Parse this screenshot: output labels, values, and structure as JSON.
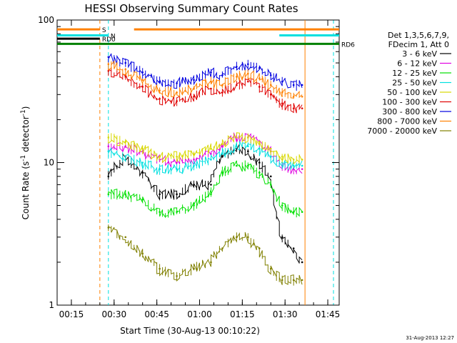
{
  "chart_data": {
    "type": "line",
    "title": "HESSI Observing Summary Count Rates",
    "xlabel": "Start Time (30-Aug-13 00:10:22)",
    "ylabel": "Count Rate (s",
    "ylabel_sup": "-1",
    "ylabel_mid": " detector",
    "ylabel_tail": ")",
    "yscale": "log",
    "ylim": [
      1,
      100
    ],
    "xlim": [
      "00:10",
      "01:49"
    ],
    "xticks": [
      "00:15",
      "00:30",
      "00:45",
      "01:00",
      "01:15",
      "01:30",
      "01:45"
    ],
    "yticks": [
      "1",
      "10",
      "100"
    ],
    "footer_date": "31-Aug-2013 12:27",
    "legend_header": [
      "Det 1,3,5,6,7,9,",
      "FDecim 1, Att 0"
    ],
    "background": "#ffffff",
    "series": [
      {
        "name": "3 - 6 keV",
        "color": "#000000",
        "x": [
          "00:28",
          "00:34",
          "00:40",
          "00:46",
          "00:52",
          "00:58",
          "01:04",
          "01:08",
          "01:13",
          "01:17",
          "01:21",
          "01:25",
          "01:29",
          "01:33",
          "01:36"
        ],
        "y": [
          8,
          11,
          8.5,
          6,
          6,
          7,
          7,
          11,
          12.5,
          12,
          10,
          8,
          3,
          2.5,
          2
        ]
      },
      {
        "name": "6 - 12 keV",
        "color": "#e000e0",
        "x": [
          "00:28",
          "00:34",
          "00:40",
          "00:46",
          "00:52",
          "00:58",
          "01:04",
          "01:08",
          "01:13",
          "01:17",
          "01:21",
          "01:25",
          "01:29",
          "01:33",
          "01:36"
        ],
        "y": [
          13,
          13,
          12,
          10.5,
          10,
          10.5,
          11.5,
          13,
          15,
          15,
          14,
          12,
          9.5,
          9,
          9
        ]
      },
      {
        "name": "12 - 25 keV",
        "color": "#00e000",
        "x": [
          "00:28",
          "00:34",
          "00:40",
          "00:46",
          "00:52",
          "00:58",
          "01:04",
          "01:08",
          "01:13",
          "01:17",
          "01:21",
          "01:25",
          "01:29",
          "01:33",
          "01:36"
        ],
        "y": [
          6,
          6,
          5.5,
          4.5,
          4.5,
          5,
          6,
          8.5,
          9.5,
          9.5,
          8.5,
          7,
          5,
          4.5,
          4.5
        ]
      },
      {
        "name": "25 - 50 keV",
        "color": "#00e0e0",
        "x": [
          "00:28",
          "00:34",
          "00:40",
          "00:46",
          "00:52",
          "00:58",
          "01:04",
          "01:08",
          "01:13",
          "01:17",
          "01:21",
          "01:25",
          "01:29",
          "01:33",
          "01:36"
        ],
        "y": [
          12,
          11,
          10,
          9,
          9,
          9.5,
          10.5,
          11.5,
          13,
          13,
          12.5,
          11,
          10,
          9.5,
          9.5
        ]
      },
      {
        "name": "50 - 100 keV",
        "color": "#d8d800",
        "x": [
          "00:28",
          "00:34",
          "00:40",
          "00:46",
          "00:52",
          "00:58",
          "01:04",
          "01:08",
          "01:13",
          "01:17",
          "01:21",
          "01:25",
          "01:29",
          "01:33",
          "01:36"
        ],
        "y": [
          15,
          14,
          12.5,
          11,
          11,
          11.5,
          12.5,
          13.5,
          15,
          15,
          14,
          12.5,
          11,
          10.5,
          10.5
        ]
      },
      {
        "name": "100 - 300 keV",
        "color": "#e00000",
        "x": [
          "00:28",
          "00:34",
          "00:40",
          "00:46",
          "00:52",
          "00:58",
          "01:04",
          "01:08",
          "01:13",
          "01:17",
          "01:21",
          "01:25",
          "01:29",
          "01:33",
          "01:36"
        ],
        "y": [
          44,
          40,
          34,
          28,
          27,
          29,
          33,
          31,
          35,
          37,
          34,
          30,
          26,
          24,
          24
        ]
      },
      {
        "name": "300 - 800 keV",
        "color": "#0000e0",
        "x": [
          "00:28",
          "00:34",
          "00:40",
          "00:46",
          "00:52",
          "00:58",
          "01:04",
          "01:08",
          "01:13",
          "01:17",
          "01:21",
          "01:25",
          "01:29",
          "01:33",
          "01:36"
        ],
        "y": [
          55,
          50,
          43,
          37,
          36,
          38,
          43,
          41,
          47,
          49,
          46,
          41,
          37,
          35,
          35
        ]
      },
      {
        "name": "800 - 7000 keV",
        "color": "#ff8000",
        "x": [
          "00:28",
          "00:34",
          "00:40",
          "00:46",
          "00:52",
          "00:58",
          "01:04",
          "01:08",
          "01:13",
          "01:17",
          "01:21",
          "01:25",
          "01:29",
          "01:33",
          "01:36"
        ],
        "y": [
          49,
          45,
          38,
          32,
          31,
          33,
          37,
          35,
          40,
          42,
          39,
          35,
          31,
          29,
          29
        ]
      },
      {
        "name": "7000 - 20000 keV",
        "color": "#808000",
        "x": [
          "00:28",
          "00:34",
          "00:40",
          "00:46",
          "00:52",
          "00:58",
          "01:04",
          "01:08",
          "01:13",
          "01:17",
          "01:21",
          "01:25",
          "01:29",
          "01:33",
          "01:36"
        ],
        "y": [
          3.5,
          3,
          2.3,
          1.8,
          1.6,
          1.8,
          2,
          2.5,
          3,
          3,
          2.5,
          1.8,
          1.5,
          1.5,
          1.5
        ]
      }
    ],
    "flags": [
      {
        "label": "S",
        "color": "#ff8000",
        "segments": [
          [
            "00:10",
            "00:25"
          ],
          [
            "00:37",
            "01:49"
          ]
        ],
        "level": 86
      },
      {
        "label": "N",
        "color": "#00e0e0",
        "segments": [
          [
            "00:10",
            "00:28"
          ],
          [
            "01:28",
            "01:49"
          ]
        ],
        "level": 78
      },
      {
        "label": "RD0",
        "color": "#000000",
        "segments": [
          [
            "00:10",
            "00:25"
          ]
        ],
        "level": 74
      },
      {
        "label": "RD6",
        "color": "#008000",
        "segments": [
          [
            "00:10",
            "01:49"
          ]
        ],
        "level": 68
      }
    ],
    "vlines": [
      {
        "x": "00:25",
        "color": "#ff8000",
        "style": "dashed"
      },
      {
        "x": "00:28",
        "color": "#00e0e0",
        "style": "dashed"
      },
      {
        "x": "01:37",
        "color": "#ff8000",
        "style": "solid"
      },
      {
        "x": "01:47",
        "color": "#00e0e0",
        "style": "dashed"
      }
    ]
  }
}
